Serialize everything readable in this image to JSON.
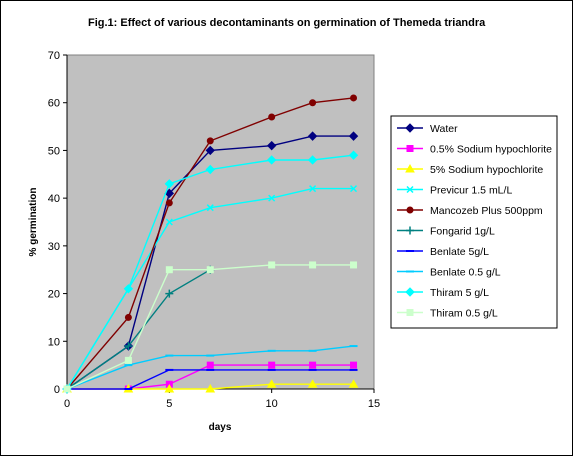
{
  "chart_data": {
    "type": "line",
    "title": "Fig.1: Effect of various decontaminants on germination of Themeda triandra",
    "xlabel": "days",
    "ylabel": "% germination",
    "xlim": [
      0,
      15
    ],
    "ylim": [
      0,
      70
    ],
    "xticks": [
      0,
      5,
      10,
      15
    ],
    "yticks": [
      0,
      10,
      20,
      30,
      40,
      50,
      60,
      70
    ],
    "plot_background": "#c0c0c0",
    "legend_position": "right",
    "series": [
      {
        "name": "Water",
        "color": "#000080",
        "marker": "diamond",
        "points": [
          [
            0,
            0
          ],
          [
            3,
            9
          ],
          [
            5,
            41
          ],
          [
            7,
            50
          ],
          [
            10,
            51
          ],
          [
            12,
            53
          ],
          [
            14,
            53
          ]
        ]
      },
      {
        "name": "0.5% Sodium hypochlorite",
        "color": "#ff00ff",
        "marker": "square",
        "points": [
          [
            0,
            0
          ],
          [
            3,
            0
          ],
          [
            5,
            1
          ],
          [
            7,
            5
          ],
          [
            10,
            5
          ],
          [
            12,
            5
          ],
          [
            14,
            5
          ]
        ]
      },
      {
        "name": "5% Sodium hypochlorite",
        "color": "#ffff00",
        "marker": "triangle",
        "points": [
          [
            0,
            0
          ],
          [
            3,
            0
          ],
          [
            5,
            0
          ],
          [
            7,
            0
          ],
          [
            10,
            1
          ],
          [
            12,
            1
          ],
          [
            14,
            1
          ]
        ]
      },
      {
        "name": "Previcur 1.5 mL/L",
        "color": "#00ffff",
        "marker": "x",
        "points": [
          [
            0,
            0
          ],
          [
            5,
            35
          ],
          [
            7,
            38
          ],
          [
            10,
            40
          ],
          [
            12,
            42
          ],
          [
            14,
            42
          ]
        ]
      },
      {
        "name": "Mancozeb Plus 500ppm",
        "color": "#800000",
        "marker": "circle",
        "points": [
          [
            0,
            0
          ],
          [
            3,
            15
          ],
          [
            5,
            39
          ],
          [
            7,
            52
          ],
          [
            10,
            57
          ],
          [
            12,
            60
          ],
          [
            14,
            61
          ]
        ]
      },
      {
        "name": "Fongarid 1g/L",
        "color": "#008080",
        "marker": "plus",
        "points": [
          [
            0,
            0
          ],
          [
            3,
            9
          ],
          [
            5,
            20
          ],
          [
            7,
            25
          ]
        ]
      },
      {
        "name": "Benlate 5g/L",
        "color": "#0000ff",
        "marker": "dash",
        "points": [
          [
            0,
            0
          ],
          [
            3,
            0
          ],
          [
            5,
            4
          ],
          [
            7,
            4
          ],
          [
            10,
            4
          ],
          [
            12,
            4
          ],
          [
            14,
            4
          ]
        ]
      },
      {
        "name": "Benlate 0.5 g/L",
        "color": "#00ccff",
        "marker": "dash",
        "points": [
          [
            0,
            0
          ],
          [
            3,
            5
          ],
          [
            5,
            7
          ],
          [
            7,
            7
          ],
          [
            10,
            8
          ],
          [
            12,
            8
          ],
          [
            14,
            9
          ]
        ]
      },
      {
        "name": "Thiram 5 g/L",
        "color": "#00ffff",
        "marker": "diamond",
        "points": [
          [
            0,
            0
          ],
          [
            3,
            21
          ],
          [
            5,
            43
          ],
          [
            7,
            46
          ],
          [
            10,
            48
          ],
          [
            12,
            48
          ],
          [
            14,
            49
          ]
        ]
      },
      {
        "name": "Thiram 0.5 g/L",
        "color": "#ccffcc",
        "marker": "square",
        "points": [
          [
            0,
            0
          ],
          [
            3,
            6
          ],
          [
            5,
            25
          ],
          [
            7,
            25
          ],
          [
            10,
            26
          ],
          [
            12,
            26
          ],
          [
            14,
            26
          ]
        ]
      }
    ]
  }
}
